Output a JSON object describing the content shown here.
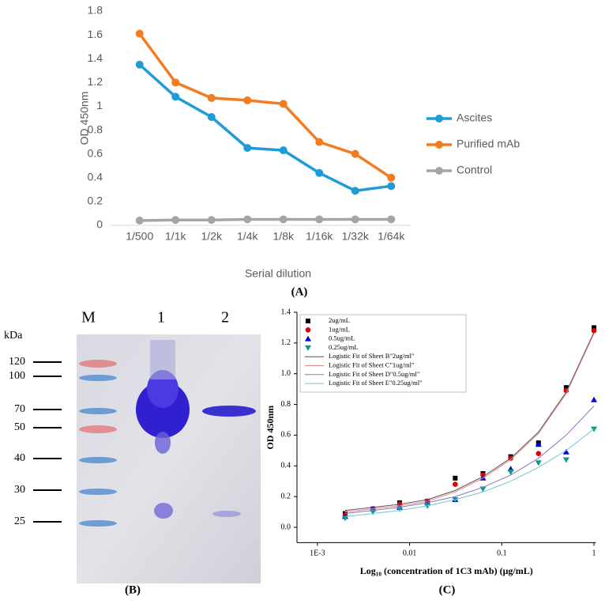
{
  "chart_data": [
    {
      "type": "line",
      "panel_label": "(A)",
      "categories": [
        "1/500",
        "1/1k",
        "1/2k",
        "1/4k",
        "1/8k",
        "1/16k",
        "1/32k",
        "1/64k"
      ],
      "series": [
        {
          "name": "Ascites",
          "color": "#1f9bd7",
          "values": [
            1.35,
            1.08,
            0.91,
            0.65,
            0.63,
            0.44,
            0.29,
            0.33
          ]
        },
        {
          "name": "Purified mAb",
          "color": "#f47c20",
          "values": [
            1.61,
            1.2,
            1.07,
            1.05,
            1.02,
            0.7,
            0.6,
            0.4
          ]
        },
        {
          "name": "Control",
          "color": "#a5a5a5",
          "values": [
            0.04,
            0.045,
            0.045,
            0.05,
            0.05,
            0.05,
            0.05,
            0.05
          ]
        }
      ],
      "ylim": [
        0,
        1.8
      ],
      "yticks": [
        0,
        0.2,
        0.4,
        0.6,
        0.8,
        1,
        1.2,
        1.4,
        1.6,
        1.8
      ],
      "ylabel": "OD 450nm",
      "xlabel": "Serial dilution",
      "legend": "right",
      "grid": false
    },
    {
      "type": "scatter",
      "panel_label": "(C)",
      "xscale": "log",
      "x": [
        0.002,
        0.004,
        0.0078,
        0.0156,
        0.03125,
        0.0625,
        0.125,
        0.25,
        0.5,
        1
      ],
      "series": [
        {
          "name": "2ug/mL",
          "color": "#000000",
          "style": "markers",
          "marker": "square",
          "values": [
            0.09,
            0.12,
            0.16,
            0.17,
            0.32,
            0.35,
            0.46,
            0.55,
            0.91,
            1.3
          ]
        },
        {
          "name": "1ug/mL",
          "color": "#e00000",
          "style": "markers",
          "marker": "circle",
          "values": [
            0.08,
            0.12,
            0.15,
            0.17,
            0.28,
            0.34,
            0.45,
            0.48,
            0.89,
            1.28
          ]
        },
        {
          "name": "0.5ug/mL",
          "color": "#0000d8",
          "style": "markers",
          "marker": "triangle-up",
          "values": [
            0.07,
            0.12,
            0.13,
            0.16,
            0.18,
            0.32,
            0.38,
            0.54,
            0.49,
            0.83
          ]
        },
        {
          "name": "0.25ug/mL",
          "color": "#0a9a8a",
          "style": "markers",
          "marker": "triangle-down",
          "values": [
            0.06,
            0.1,
            0.12,
            0.14,
            0.18,
            0.25,
            0.36,
            0.42,
            0.44,
            0.64
          ]
        },
        {
          "name": "Logistic Fit of Sheet B\"2ug/ml\"",
          "color": "#555555",
          "style": "line",
          "values": [
            0.11,
            0.13,
            0.15,
            0.18,
            0.24,
            0.33,
            0.45,
            0.62,
            0.88,
            1.27
          ]
        },
        {
          "name": "Logistic Fit of Sheet C\"1ug/ml\"",
          "color": "#e88888",
          "style": "line",
          "values": [
            0.1,
            0.12,
            0.14,
            0.17,
            0.23,
            0.32,
            0.44,
            0.61,
            0.87,
            1.26
          ]
        },
        {
          "name": "Logistic Fit of Sheet D\"0.5ug/ml\"",
          "color": "#9070c0",
          "style": "line",
          "values": [
            0.09,
            0.11,
            0.13,
            0.16,
            0.2,
            0.26,
            0.34,
            0.45,
            0.6,
            0.79
          ]
        },
        {
          "name": "Logistic Fit of Sheet E\"0.25ug/ml\"",
          "color": "#70c8c8",
          "style": "line",
          "values": [
            0.07,
            0.09,
            0.11,
            0.14,
            0.18,
            0.23,
            0.3,
            0.39,
            0.5,
            0.64
          ]
        }
      ],
      "xlim": [
        0.0006,
        1.05
      ],
      "xticks": [
        {
          "value": 0.001,
          "label": "1E-3"
        },
        0.01,
        0.1,
        1
      ],
      "ylim": [
        -0.1,
        1.4
      ],
      "yticks": [
        {
          "value": 0,
          "label": "0.0"
        },
        0.2,
        0.4,
        0.6,
        0.8,
        {
          "value": 1,
          "label": "1.0"
        },
        1.2,
        1.4
      ],
      "ylabel": "OD 450nm",
      "xlabel": "Log₁₀ (concentration of 1C3 mAb) (μg/mL)",
      "legend": "upper left",
      "grid": false
    }
  ],
  "gel": {
    "panel_label": "(B)",
    "unit": "kDa",
    "lanes": [
      "M",
      "1",
      "2"
    ],
    "markers": [
      120,
      100,
      70,
      50,
      40,
      30,
      25
    ]
  }
}
